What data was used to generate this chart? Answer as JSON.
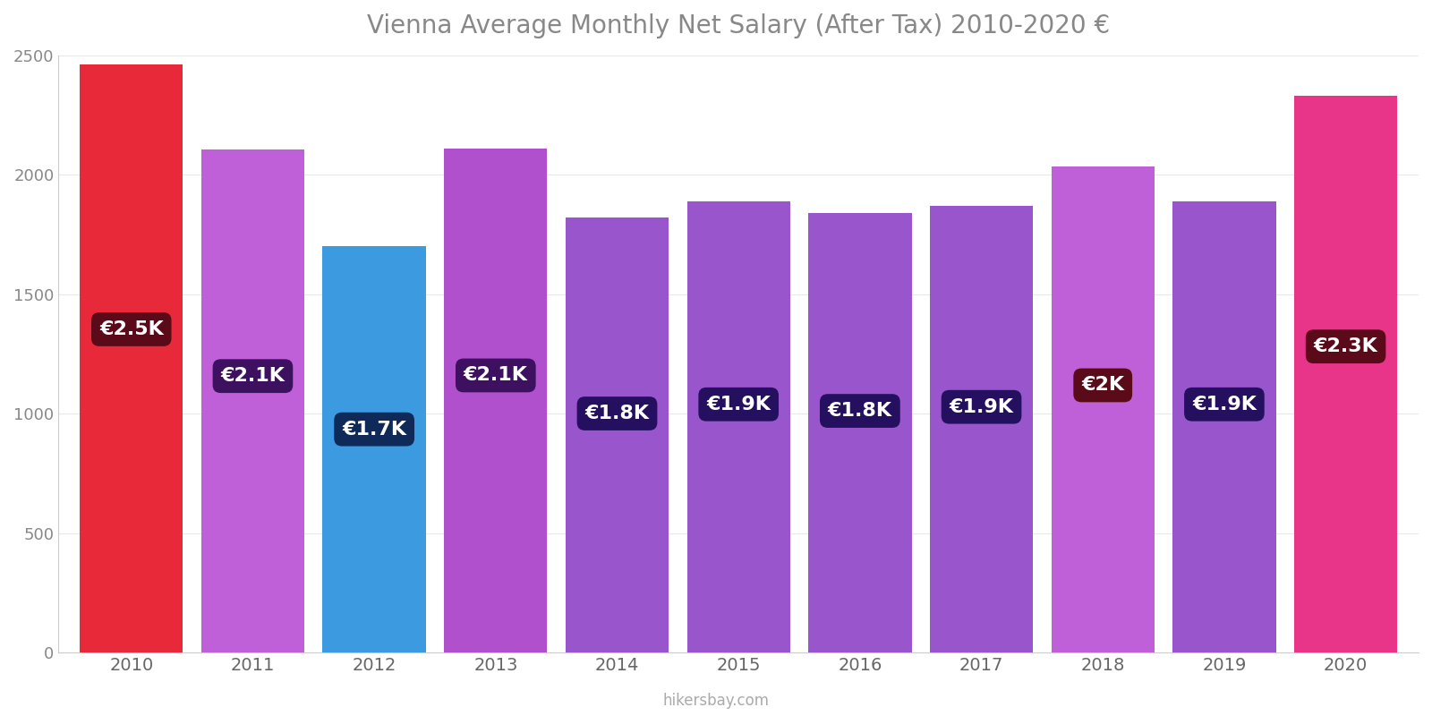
{
  "years": [
    2010,
    2011,
    2012,
    2013,
    2014,
    2015,
    2016,
    2017,
    2018,
    2019,
    2020
  ],
  "values": [
    2461,
    2105,
    1700,
    2110,
    1820,
    1890,
    1840,
    1870,
    2035,
    1890,
    2330
  ],
  "labels": [
    "€2.5K",
    "€2.1K",
    "€1.7K",
    "€2.1K",
    "€1.8K",
    "€1.9K",
    "€1.8K",
    "€1.9K",
    "€2K",
    "€1.9K",
    "€2.3K"
  ],
  "bar_colors": [
    "#e8293a",
    "#c060d8",
    "#3b9ae0",
    "#b050cc",
    "#9955cc",
    "#9955cc",
    "#9955cc",
    "#9955cc",
    "#c060d8",
    "#9955cc",
    "#e8358a"
  ],
  "label_bg_colors": [
    "#5a0a18",
    "#3d1060",
    "#0f2a58",
    "#3d1060",
    "#251060",
    "#251060",
    "#251060",
    "#251060",
    "#5a0a18",
    "#251060",
    "#5a0a18"
  ],
  "title": "Vienna Average Monthly Net Salary (After Tax) 2010-2020 €",
  "title_color": "#888888",
  "title_fontsize": 20,
  "ylim": [
    0,
    2500
  ],
  "yticks": [
    0,
    500,
    1000,
    1500,
    2000,
    2500
  ],
  "footer": "hikersbay.com",
  "background_color": "#ffffff",
  "label_fontsize": 16,
  "label_text_color": "#ffffff",
  "bar_width": 0.85
}
